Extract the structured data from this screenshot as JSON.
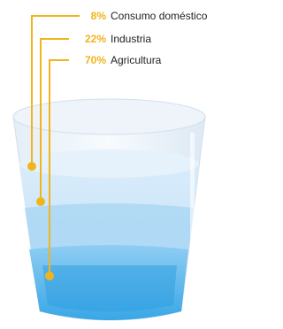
{
  "items": [
    {
      "percent": "8%",
      "label": "Consumo doméstico"
    },
    {
      "percent": "22%",
      "label": "Industria"
    },
    {
      "percent": "70%",
      "label": "Agricultura"
    }
  ]
}
